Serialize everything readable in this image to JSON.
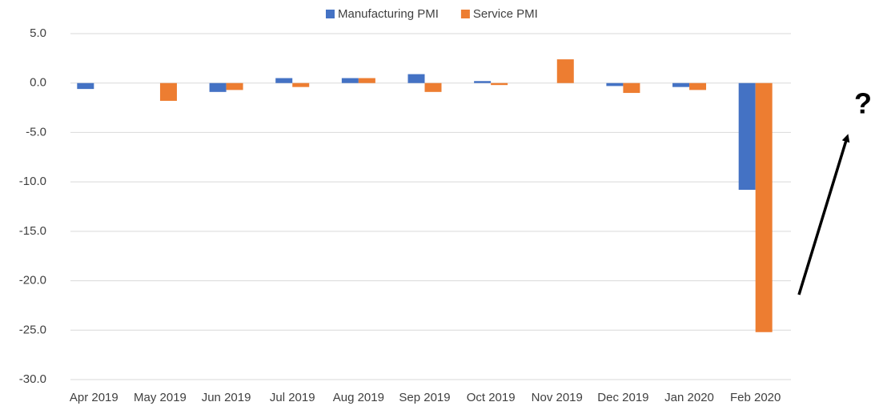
{
  "chart_data": {
    "type": "bar",
    "categories": [
      "Apr 2019",
      "May 2019",
      "Jun 2019",
      "Jul 2019",
      "Aug 2019",
      "Sep 2019",
      "Oct 2019",
      "Nov 2019",
      "Dec 2019",
      "Jan 2020",
      "Feb 2020"
    ],
    "series": [
      {
        "name": "Manufacturing PMI",
        "color": "#4472c4",
        "values": [
          -0.6,
          0,
          -0.9,
          0.5,
          0.5,
          0.9,
          0.2,
          0,
          -0.3,
          -0.4,
          -10.8
        ]
      },
      {
        "name": "Service PMI",
        "color": "#ed7d31",
        "values": [
          0,
          -1.8,
          -0.7,
          -0.4,
          0.5,
          -0.9,
          -0.2,
          2.4,
          -1.0,
          -0.7,
          -25.2
        ]
      }
    ],
    "ylim": [
      -30,
      5
    ],
    "yticks": [
      {
        "value": 5,
        "label": "5.0"
      },
      {
        "value": 0,
        "label": "0.0"
      },
      {
        "value": -5,
        "label": "-5.0"
      },
      {
        "value": -10,
        "label": "-10.0"
      },
      {
        "value": -15,
        "label": "-15.0"
      },
      {
        "value": -20,
        "label": "-20.0"
      },
      {
        "value": -25,
        "label": "-25.0"
      },
      {
        "value": -30,
        "label": "-30.0"
      }
    ],
    "grid": true,
    "legend": "top",
    "annotation": "?"
  }
}
